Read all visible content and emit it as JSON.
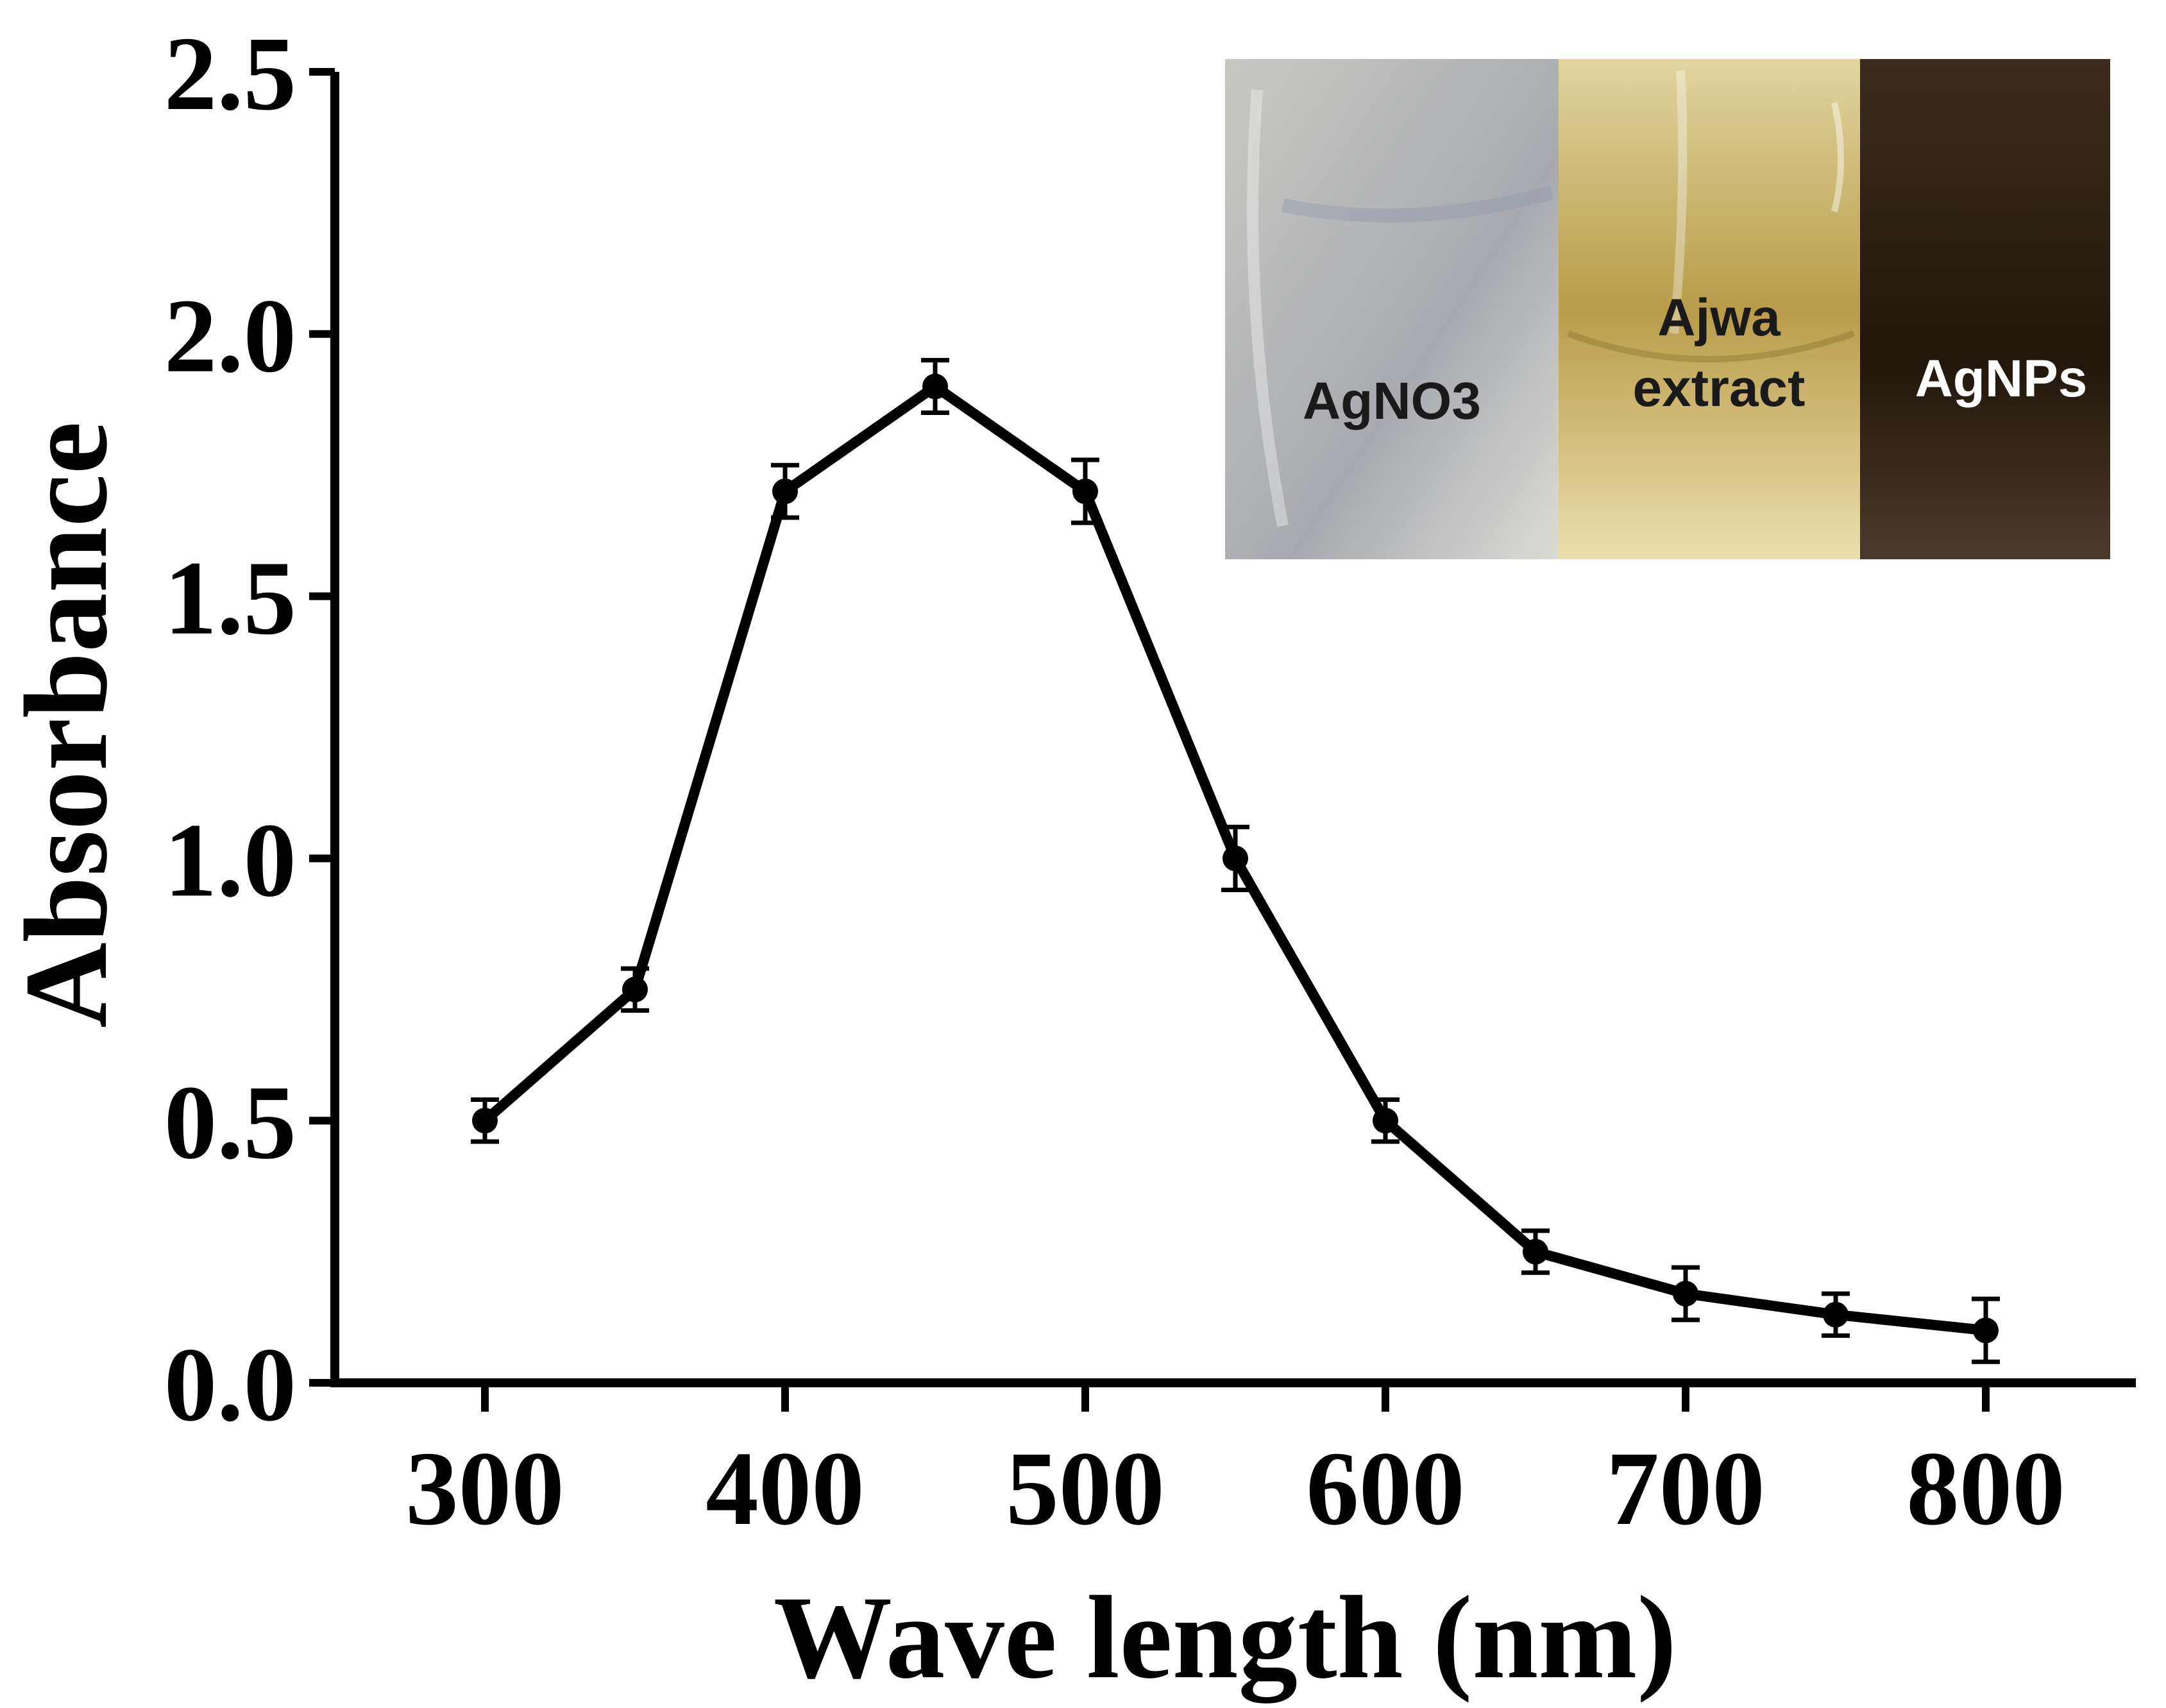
{
  "chart_data": {
    "type": "line",
    "title": "",
    "xlabel": "Wave length (nm)",
    "ylabel": "Absorbance",
    "xlim": [
      250,
      850
    ],
    "ylim": [
      0,
      2.5
    ],
    "xticks": [
      300,
      400,
      500,
      600,
      700,
      800
    ],
    "xtick_labels": [
      "300",
      "400",
      "500",
      "600",
      "700",
      "800"
    ],
    "yticks": [
      0,
      0.5,
      1.0,
      1.5,
      2.0,
      2.5
    ],
    "ytick_labels": [
      "0.0",
      "0.5",
      "1.0",
      "1.5",
      "2.0",
      "2.5"
    ],
    "grid": false,
    "series": [
      {
        "name": "Absorbance",
        "x": [
          300,
          350,
          400,
          450,
          500,
          550,
          600,
          650,
          700,
          750,
          800
        ],
        "y": [
          0.5,
          0.75,
          1.7,
          1.9,
          1.7,
          1.0,
          0.5,
          0.25,
          0.17,
          0.13,
          0.1
        ],
        "err": [
          0.04,
          0.04,
          0.05,
          0.05,
          0.06,
          0.06,
          0.04,
          0.04,
          0.05,
          0.04,
          0.06
        ],
        "color": "#000000"
      }
    ]
  },
  "inset": {
    "panels": [
      {
        "label_lines": [
          "AgNO3"
        ],
        "label_color": "#1a1a1a",
        "colors": [
          "#c9c9c3",
          "#a8aab0",
          "#dcdcd6"
        ]
      },
      {
        "label_lines": [
          "Ajwa",
          "extract"
        ],
        "label_color": "#1a1a1a",
        "colors": [
          "#e2d5a0",
          "#b89c4a",
          "#ecdfae"
        ]
      },
      {
        "label_lines": [
          "AgNPs"
        ],
        "label_color": "#ffffff",
        "colors": [
          "#3a2c1f",
          "#21170d",
          "#4a3a2a"
        ]
      }
    ]
  }
}
